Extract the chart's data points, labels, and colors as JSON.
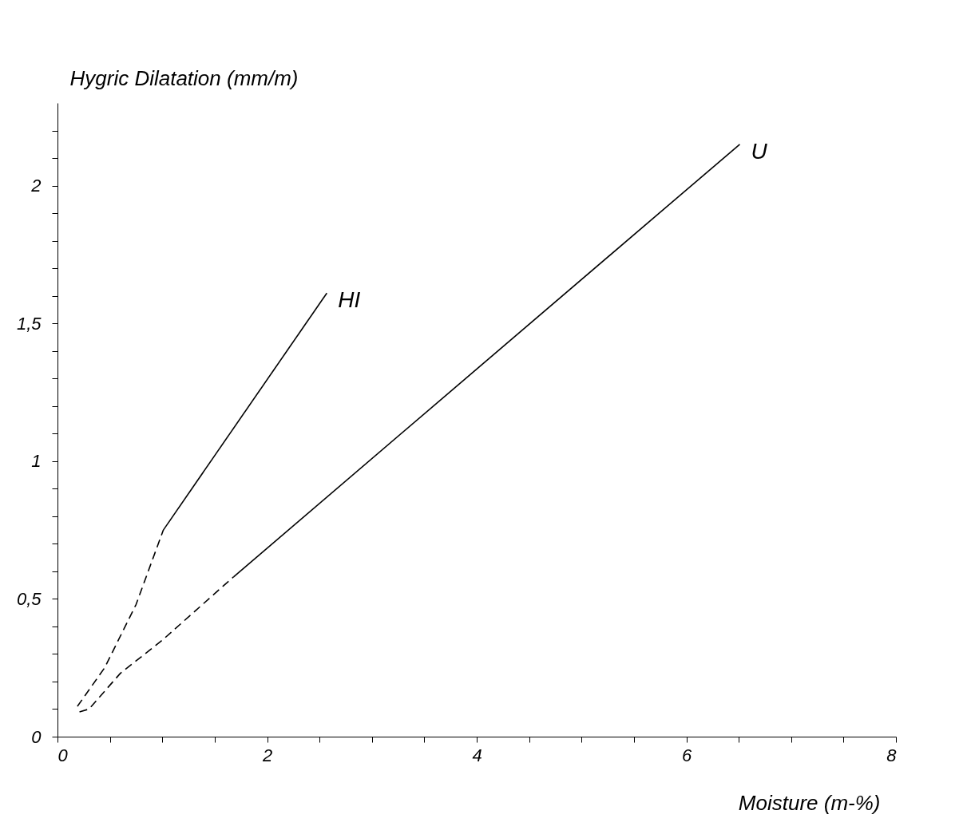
{
  "chart_data": {
    "type": "line",
    "xlabel": "Moisture (m-%)",
    "ylabel": "Hygric Dilatation (mm/m)",
    "xlim": [
      0,
      8
    ],
    "ylim": [
      0,
      2.3
    ],
    "xticks": [
      0,
      {
        "value": 0.5,
        "label": null
      },
      {
        "value": 1,
        "label": null
      },
      {
        "value": 1.5,
        "label": null
      },
      2,
      {
        "value": 2.5,
        "label": null
      },
      {
        "value": 3,
        "label": null
      },
      {
        "value": 3.5,
        "label": null
      },
      4,
      {
        "value": 4.5,
        "label": null
      },
      {
        "value": 5,
        "label": null
      },
      {
        "value": 5.5,
        "label": null
      },
      6,
      {
        "value": 6.5,
        "label": null
      },
      {
        "value": 7,
        "label": null
      },
      {
        "value": 7.5,
        "label": null
      },
      8
    ],
    "yticks": [
      0,
      {
        "value": 0.1,
        "label": null
      },
      {
        "value": 0.2,
        "label": null
      },
      {
        "value": 0.3,
        "label": null
      },
      {
        "value": 0.4,
        "label": null
      },
      {
        "value": 0.5,
        "label": "0,5"
      },
      {
        "value": 0.6,
        "label": null
      },
      {
        "value": 0.7,
        "label": null
      },
      {
        "value": 0.8,
        "label": null
      },
      {
        "value": 0.9,
        "label": null
      },
      1,
      {
        "value": 1.1,
        "label": null
      },
      {
        "value": 1.2,
        "label": null
      },
      {
        "value": 1.3,
        "label": null
      },
      {
        "value": 1.4,
        "label": null
      },
      {
        "value": 1.5,
        "label": "1,5"
      },
      {
        "value": 1.6,
        "label": null
      },
      {
        "value": 1.7,
        "label": null
      },
      {
        "value": 1.8,
        "label": null
      },
      {
        "value": 1.9,
        "label": null
      },
      2,
      {
        "value": 2.1,
        "label": null
      },
      {
        "value": 2.2,
        "label": null
      }
    ],
    "grid": false,
    "series": [
      {
        "color": "#000000",
        "line_style": "dashed",
        "x": [
          0.19,
          0.45,
          0.75,
          1.01
        ],
        "values": [
          0.11,
          0.25,
          0.48,
          0.75
        ]
      },
      {
        "name": "HI",
        "color": "#000000",
        "line_style": "solid",
        "x": [
          1.01,
          2.57
        ],
        "values": [
          0.75,
          1.61
        ]
      },
      {
        "color": "#000000",
        "line_style": "dashed",
        "x": [
          0.21,
          0.3,
          0.6,
          1.0,
          1.68
        ],
        "values": [
          0.09,
          0.1,
          0.23,
          0.35,
          0.58
        ]
      },
      {
        "name": "U",
        "color": "#000000",
        "line_style": "solid",
        "x": [
          1.68,
          6.51
        ],
        "values": [
          0.58,
          2.15
        ]
      }
    ]
  }
}
